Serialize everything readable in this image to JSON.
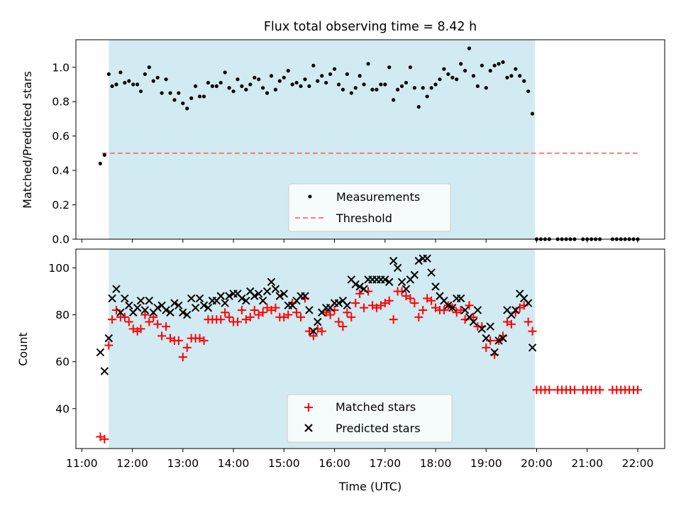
{
  "chart_data": [
    {
      "type": "scatter",
      "title": "Flux total observing time = 8.42 h",
      "xlabel": "",
      "ylabel": "Matched/Predicted stars",
      "xlim": [
        "10:53",
        "22:32"
      ],
      "ylim": [
        0.0,
        1.16
      ],
      "xticks": [
        "11:00",
        "12:00",
        "13:00",
        "14:00",
        "15:00",
        "16:00",
        "17:00",
        "18:00",
        "19:00",
        "20:00",
        "21:00",
        "22:00"
      ],
      "yticks": [
        "0.0",
        "0.2",
        "0.4",
        "0.6",
        "0.8",
        "1.0"
      ],
      "shaded_span": [
        "11:32",
        "19:58"
      ],
      "shade_color": "#add8e6",
      "threshold": {
        "name": "Threshold",
        "value": 0.5,
        "x_start": "11:24",
        "x_end": "22:00",
        "color": "#ff6666",
        "style": "dashed"
      },
      "series": [
        {
          "name": "Measurements",
          "color": "#000000",
          "marker": "dot",
          "x": [
            "11:22",
            "11:27",
            "11:32",
            "11:36",
            "11:41",
            "11:46",
            "11:51",
            "11:56",
            "12:01",
            "12:06",
            "12:10",
            "12:15",
            "12:20",
            "12:25",
            "12:30",
            "12:35",
            "12:40",
            "12:45",
            "12:50",
            "12:55",
            "13:00",
            "13:05",
            "13:10",
            "13:15",
            "13:20",
            "13:25",
            "13:30",
            "13:35",
            "13:40",
            "13:45",
            "13:50",
            "13:55",
            "14:00",
            "14:05",
            "14:10",
            "14:15",
            "14:20",
            "14:25",
            "14:30",
            "14:35",
            "14:40",
            "14:45",
            "14:50",
            "14:55",
            "15:00",
            "15:05",
            "15:10",
            "15:15",
            "15:20",
            "15:25",
            "15:30",
            "15:35",
            "15:40",
            "15:45",
            "15:50",
            "15:55",
            "16:00",
            "16:05",
            "16:10",
            "16:15",
            "16:20",
            "16:25",
            "16:30",
            "16:35",
            "16:40",
            "16:45",
            "16:50",
            "16:55",
            "17:00",
            "17:05",
            "17:10",
            "17:15",
            "17:20",
            "17:25",
            "17:30",
            "17:35",
            "17:40",
            "17:45",
            "17:50",
            "17:55",
            "18:00",
            "18:05",
            "18:10",
            "18:15",
            "18:20",
            "18:25",
            "18:30",
            "18:35",
            "18:40",
            "18:45",
            "18:50",
            "18:55",
            "19:00",
            "19:05",
            "19:10",
            "19:15",
            "19:20",
            "19:25",
            "19:30",
            "19:35",
            "19:40",
            "19:45",
            "19:50",
            "19:55",
            "20:00",
            "20:05",
            "20:10",
            "20:15",
            "20:25",
            "20:30",
            "20:35",
            "20:40",
            "20:45",
            "20:55",
            "21:00",
            "21:05",
            "21:10",
            "21:15",
            "21:30",
            "21:35",
            "21:40",
            "21:45",
            "21:50",
            "21:55",
            "22:00"
          ],
          "y": [
            0.44,
            0.49,
            0.96,
            0.89,
            0.9,
            0.97,
            0.91,
            0.92,
            0.9,
            0.9,
            0.86,
            0.96,
            1.0,
            0.92,
            0.94,
            0.85,
            0.93,
            0.85,
            0.81,
            0.85,
            0.79,
            0.76,
            0.82,
            0.89,
            0.83,
            0.83,
            0.91,
            0.89,
            0.89,
            0.91,
            0.97,
            0.88,
            0.86,
            0.93,
            0.89,
            0.87,
            0.9,
            0.94,
            0.93,
            0.88,
            0.85,
            0.95,
            0.87,
            0.92,
            0.94,
            0.98,
            0.9,
            0.91,
            0.89,
            0.93,
            0.89,
            1.01,
            0.92,
            0.95,
            0.91,
            0.96,
            0.99,
            0.9,
            0.87,
            0.96,
            0.85,
            0.88,
            0.95,
            0.9,
            1.02,
            0.87,
            0.87,
            0.9,
            0.9,
            1.0,
            0.81,
            0.87,
            0.89,
            0.91,
            1.0,
            0.88,
            0.77,
            0.88,
            0.83,
            0.88,
            0.9,
            0.93,
            0.99,
            0.96,
            0.94,
            0.93,
            1.02,
            0.98,
            1.11,
            0.95,
            0.89,
            1.01,
            0.88,
            0.98,
            1.01,
            1.02,
            1.03,
            0.94,
            0.95,
            0.99,
            0.95,
            0.92,
            0.86,
            0.73,
            0.0,
            0.0,
            0.0,
            0.0,
            0.0,
            0.0,
            0.0,
            0.0,
            0.0,
            0.0,
            0.0,
            0.0,
            0.0,
            0.0,
            0.0,
            0.0,
            0.0,
            0.0,
            0.0,
            0.0,
            0.0
          ]
        }
      ],
      "legend": {
        "placement": "lower center",
        "entries": [
          {
            "label": "Measurements",
            "kind": "dot",
            "color": "#000000"
          },
          {
            "label": "Threshold",
            "kind": "dashed-line",
            "color": "#ff6666"
          }
        ]
      }
    },
    {
      "type": "scatter",
      "title": "",
      "xlabel": "Time (UTC)",
      "ylabel": "Count",
      "xlim": [
        "10:53",
        "22:32"
      ],
      "ylim": [
        23,
        108
      ],
      "xticks": [
        "11:00",
        "12:00",
        "13:00",
        "14:00",
        "15:00",
        "16:00",
        "17:00",
        "18:00",
        "19:00",
        "20:00",
        "21:00",
        "22:00"
      ],
      "yticks": [
        "40",
        "60",
        "80",
        "100"
      ],
      "shaded_span": [
        "11:32",
        "19:58"
      ],
      "shade_color": "#add8e6",
      "series": [
        {
          "name": "Matched stars",
          "color": "#ff0000",
          "marker": "plus",
          "x": [
            "11:22",
            "11:27",
            "11:32",
            "11:36",
            "11:41",
            "11:46",
            "11:51",
            "11:56",
            "12:01",
            "12:06",
            "12:10",
            "12:15",
            "12:20",
            "12:25",
            "12:30",
            "12:35",
            "12:40",
            "12:45",
            "12:50",
            "12:55",
            "13:00",
            "13:05",
            "13:10",
            "13:15",
            "13:20",
            "13:25",
            "13:30",
            "13:35",
            "13:40",
            "13:45",
            "13:50",
            "13:55",
            "14:00",
            "14:05",
            "14:10",
            "14:15",
            "14:20",
            "14:25",
            "14:30",
            "14:35",
            "14:40",
            "14:45",
            "14:50",
            "14:55",
            "15:00",
            "15:05",
            "15:10",
            "15:15",
            "15:20",
            "15:25",
            "15:30",
            "15:35",
            "15:40",
            "15:45",
            "15:50",
            "15:55",
            "16:00",
            "16:05",
            "16:10",
            "16:15",
            "16:20",
            "16:25",
            "16:30",
            "16:35",
            "16:40",
            "16:45",
            "16:50",
            "16:55",
            "17:00",
            "17:05",
            "17:10",
            "17:15",
            "17:20",
            "17:25",
            "17:30",
            "17:35",
            "17:40",
            "17:45",
            "17:50",
            "17:55",
            "18:00",
            "18:05",
            "18:10",
            "18:15",
            "18:20",
            "18:25",
            "18:30",
            "18:35",
            "18:40",
            "18:45",
            "18:50",
            "18:55",
            "19:00",
            "19:05",
            "19:10",
            "19:15",
            "19:20",
            "19:25",
            "19:30",
            "19:35",
            "19:40",
            "19:45",
            "19:50",
            "19:55",
            "20:00",
            "20:05",
            "20:10",
            "20:15",
            "20:25",
            "20:30",
            "20:35",
            "20:40",
            "20:45",
            "20:55",
            "21:00",
            "21:05",
            "21:10",
            "21:15",
            "21:30",
            "21:35",
            "21:40",
            "21:45",
            "21:50",
            "21:55",
            "22:00"
          ],
          "y": [
            28,
            27,
            67,
            78,
            82,
            79,
            79,
            77,
            74,
            73,
            74,
            80,
            77,
            79,
            76,
            71,
            75,
            70,
            69,
            69,
            62,
            66,
            70,
            70,
            70,
            69,
            78,
            78,
            78,
            78,
            81,
            79,
            77,
            77,
            82,
            78,
            79,
            82,
            80,
            81,
            83,
            82,
            83,
            79,
            79,
            80,
            85,
            81,
            79,
            87,
            73,
            71,
            74,
            73,
            81,
            80,
            82,
            77,
            75,
            81,
            79,
            85,
            89,
            83,
            90,
            84,
            83,
            84,
            85,
            86,
            78,
            90,
            90,
            88,
            87,
            85,
            79,
            82,
            87,
            86,
            83,
            82,
            82,
            84,
            83,
            81,
            82,
            78,
            84,
            79,
            75,
            75,
            66,
            69,
            63,
            69,
            71,
            77,
            76,
            81,
            83,
            84,
            77,
            73,
            48,
            48,
            48,
            48,
            48,
            48,
            48,
            48,
            48,
            48,
            48,
            48,
            48,
            48,
            48,
            48,
            48,
            48,
            48,
            48,
            48
          ]
        },
        {
          "name": "Predicted stars",
          "color": "#000000",
          "marker": "x",
          "x": [
            "11:22",
            "11:27",
            "11:32",
            "11:36",
            "11:41",
            "11:46",
            "11:51",
            "11:56",
            "12:01",
            "12:06",
            "12:10",
            "12:15",
            "12:20",
            "12:25",
            "12:30",
            "12:35",
            "12:40",
            "12:45",
            "12:50",
            "12:55",
            "13:00",
            "13:05",
            "13:10",
            "13:15",
            "13:20",
            "13:25",
            "13:30",
            "13:35",
            "13:40",
            "13:45",
            "13:50",
            "13:55",
            "14:00",
            "14:05",
            "14:10",
            "14:15",
            "14:20",
            "14:25",
            "14:30",
            "14:35",
            "14:40",
            "14:45",
            "14:50",
            "14:55",
            "15:00",
            "15:05",
            "15:10",
            "15:15",
            "15:20",
            "15:25",
            "15:30",
            "15:35",
            "15:40",
            "15:45",
            "15:50",
            "15:55",
            "16:00",
            "16:05",
            "16:10",
            "16:15",
            "16:20",
            "16:25",
            "16:30",
            "16:35",
            "16:40",
            "16:45",
            "16:50",
            "16:55",
            "17:00",
            "17:05",
            "17:10",
            "17:15",
            "17:20",
            "17:25",
            "17:30",
            "17:35",
            "17:40",
            "17:45",
            "17:50",
            "17:55",
            "18:00",
            "18:05",
            "18:10",
            "18:15",
            "18:20",
            "18:25",
            "18:30",
            "18:35",
            "18:40",
            "18:45",
            "18:50",
            "18:55",
            "19:00",
            "19:05",
            "19:10",
            "19:15",
            "19:20",
            "19:25",
            "19:30",
            "19:35",
            "19:40",
            "19:45",
            "19:50",
            "19:55"
          ],
          "y": [
            64,
            56,
            70,
            87,
            91,
            81,
            87,
            84,
            81,
            83,
            86,
            82,
            86,
            81,
            83,
            84,
            82,
            81,
            85,
            84,
            81,
            80,
            87,
            83,
            87,
            84,
            83,
            86,
            86,
            88,
            85,
            88,
            89,
            89,
            87,
            86,
            90,
            88,
            89,
            86,
            90,
            94,
            91,
            88,
            89,
            84,
            84,
            86,
            88,
            88,
            82,
            73,
            77,
            81,
            83,
            83,
            85,
            85,
            86,
            84,
            95,
            93,
            92,
            91,
            95,
            95,
            95,
            95,
            95,
            94,
            103,
            100,
            94,
            91,
            95,
            97,
            103,
            104,
            104,
            98,
            92,
            88,
            86,
            84,
            83,
            87,
            87,
            82,
            79,
            77,
            82,
            74,
            70,
            75,
            64,
            69,
            70,
            82,
            80,
            82,
            89,
            87,
            85,
            66
          ]
        }
      ],
      "legend": {
        "placement": "lower center",
        "entries": [
          {
            "label": "Matched stars",
            "kind": "plus",
            "color": "#ff0000"
          },
          {
            "label": "Predicted stars",
            "kind": "x",
            "color": "#000000"
          }
        ]
      }
    }
  ]
}
